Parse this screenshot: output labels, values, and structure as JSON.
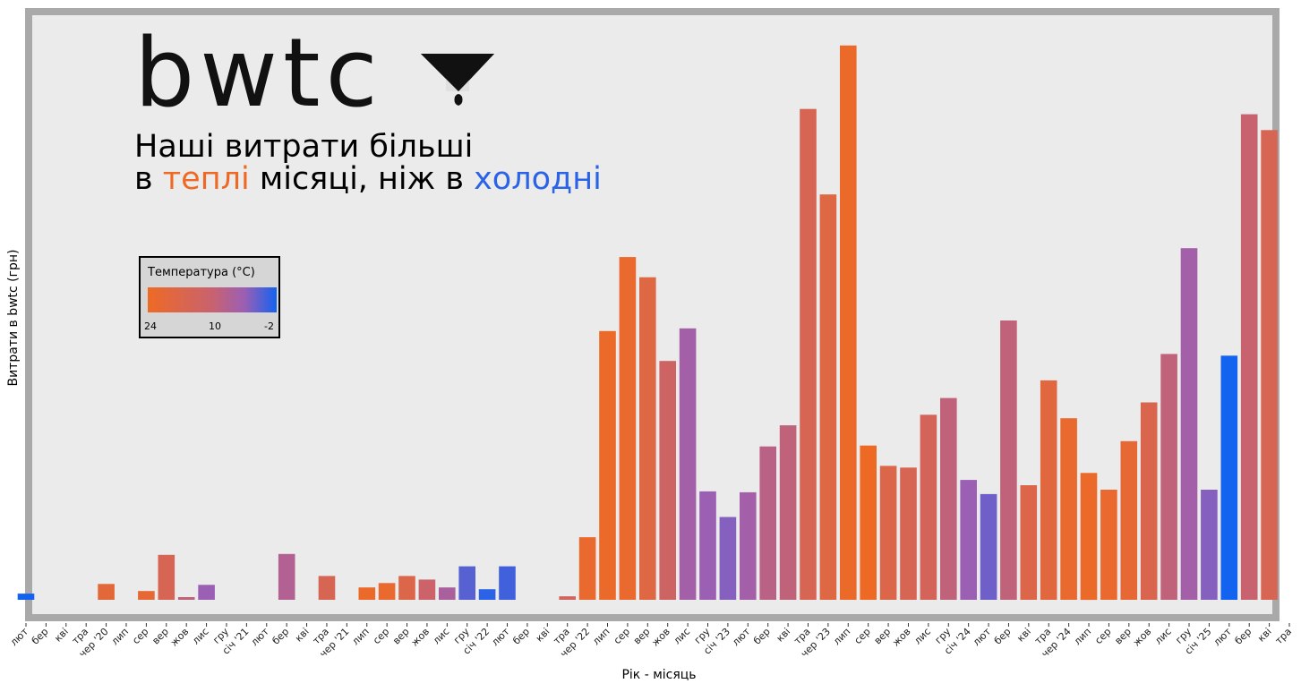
{
  "logo": {
    "text": "bwtc",
    "icon": "funnel-drop-icon"
  },
  "headline": {
    "line1": "Наші витрати більші",
    "line2_prefix": "в",
    "line2_warm": "теплі",
    "line2_middle": "місяці, ніж в",
    "line2_cold": "холодні"
  },
  "legend": {
    "title": "Температура (°C)",
    "ticks": [
      "24",
      "10",
      "-2"
    ],
    "colors": [
      "#ee6a24",
      "#c9626f",
      "#9b5fb4",
      "#1462f0"
    ]
  },
  "chart_data": {
    "type": "bar",
    "xlabel": "Рік - місяць",
    "ylabel": "Витрати в bwtc (грн)",
    "grid": false,
    "categories": [
      "лют",
      "бер",
      "кві",
      "тра",
      "чер '20",
      "лип",
      "сер",
      "вер",
      "жов",
      "лис",
      "гру",
      "січ '21",
      "лют",
      "бер",
      "кві",
      "тра",
      "чер '21",
      "лип",
      "сер",
      "вер",
      "жов",
      "лис",
      "гру",
      "січ '22",
      "лют",
      "бер",
      "кві",
      "тра",
      "чер '22",
      "лип",
      "сер",
      "вер",
      "жов",
      "лис",
      "гру",
      "січ '23",
      "лют",
      "бер",
      "кві",
      "тра",
      "чер '23",
      "лип",
      "сер",
      "вер",
      "жов",
      "лис",
      "гру",
      "січ '24",
      "лют",
      "бер",
      "кві",
      "тра",
      "чер '24",
      "лип",
      "сер",
      "вер",
      "жов",
      "лис",
      "гру",
      "січ '25",
      "лют",
      "бер",
      "кві",
      "тра"
    ],
    "tick_labels": [
      "лют",
      "бер",
      "кві",
      "тра",
      "чер '20",
      "лип",
      "сер",
      "вер",
      "жов",
      "лис",
      "гру",
      "січ '21",
      "лют",
      "бер",
      "кві",
      "тра",
      "чер '21",
      "лип",
      "сер",
      "вер",
      "жов",
      "лис",
      "гру",
      "січ '22",
      "лют",
      "бер",
      "кві",
      "тра",
      "чер '22",
      "лип",
      "сер",
      "вер",
      "жов",
      "лис",
      "гру",
      "січ '23",
      "лют",
      "бер",
      "кві",
      "тра",
      "чер '23",
      "лип",
      "сер",
      "вер",
      "жов",
      "лис",
      "гру",
      "січ '24",
      "лют",
      "бер",
      "кві",
      "тра",
      "чер '24",
      "лип",
      "сер",
      "вер",
      "жов",
      "лис",
      "гру",
      "січ '25",
      "лют",
      "бер",
      "кві",
      "тра"
    ],
    "values": [
      7,
      0,
      0,
      0,
      18,
      0,
      10,
      51,
      3,
      17,
      0,
      0,
      0,
      52,
      0,
      27,
      0,
      14,
      19,
      27,
      23,
      14,
      38,
      12,
      38,
      0,
      0,
      4,
      71,
      305,
      389,
      366,
      271,
      308,
      123,
      94,
      122,
      174,
      198,
      557,
      460,
      629,
      175,
      152,
      150,
      210,
      229,
      136,
      120,
      317,
      130,
      249,
      206,
      144,
      125,
      180,
      224,
      279,
      399,
      125,
      277,
      551,
      533,
      0
    ],
    "temperatures": [
      -2,
      0,
      8,
      14,
      20,
      22,
      21,
      15,
      9,
      4,
      0,
      -1,
      0,
      7,
      10,
      15,
      20,
      23,
      22,
      17,
      11,
      6,
      1,
      -1,
      0,
      0,
      0,
      13,
      22,
      23,
      22,
      18,
      12,
      5,
      4,
      3,
      5,
      8,
      9,
      15,
      18,
      23,
      24,
      17,
      15,
      14,
      9,
      4,
      2,
      9,
      17,
      19,
      22,
      23,
      22,
      21,
      16,
      9,
      5,
      3,
      -2,
      10,
      15,
      0
    ],
    "colors": [
      {
        "stop": 24,
        "color": "#ee6a24"
      },
      {
        "stop": 10,
        "color": "#c9626f"
      },
      {
        "stop": 4,
        "color": "#9b5fb4"
      },
      {
        "stop": -2,
        "color": "#1462f0"
      }
    ],
    "ylim": [
      0,
      640
    ]
  }
}
